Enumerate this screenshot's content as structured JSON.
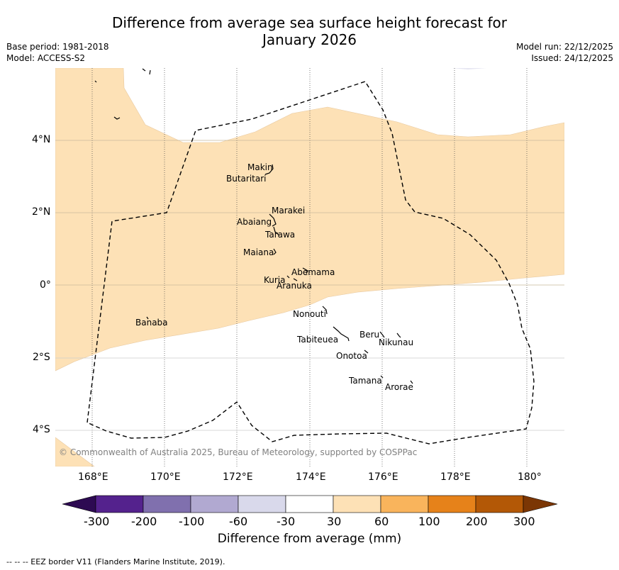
{
  "title_line1": "Difference from average sea surface height forecast for",
  "title_line2": "January 2026",
  "meta_left": {
    "base_period": "Base period: 1981-2018",
    "model": "Model: ACCESS-S2"
  },
  "meta_right": {
    "model_run": "Model run: 22/12/2025",
    "issued": "Issued: 24/12/2025"
  },
  "map": {
    "lon_ticks": [
      "168°E",
      "170°E",
      "172°E",
      "174°E",
      "176°E",
      "178°E",
      "180°"
    ],
    "lat_ticks": [
      "4°N",
      "2°N",
      "0°",
      "2°S",
      "4°S"
    ],
    "islands": [
      "Makin",
      "Butaritari",
      "Marakei",
      "Abaiang",
      "Tarawa",
      "Maiana",
      "Abemama",
      "Kuria",
      "Aranuka",
      "Banaba",
      "Nonouti",
      "Beru",
      "Nikunau",
      "Tabiteuea",
      "Onotoa",
      "Tamana",
      "Arorae"
    ],
    "copyright": "© Commonwealth of Australia 2025, Bureau of Meteorology, supported by COSPPac",
    "shading_color": "#fde1b6",
    "border_style": "dashed",
    "shaded_category_range_mm": [
      30,
      60
    ]
  },
  "colorbar": {
    "ticks": [
      "-300",
      "-200",
      "-100",
      "-60",
      "-30",
      "30",
      "60",
      "100",
      "200",
      "300"
    ],
    "colors": [
      "#2d0a52",
      "#54228d",
      "#8070ae",
      "#b1a9d1",
      "#d9d9eb",
      "#ffffff",
      "#fde1b6",
      "#f9b45c",
      "#e6821a",
      "#b35806",
      "#7b3604"
    ],
    "label": "Difference from average (mm)"
  },
  "footer": "--  --  -- EEZ border V11 (Flanders Marine Institute, 2019)."
}
